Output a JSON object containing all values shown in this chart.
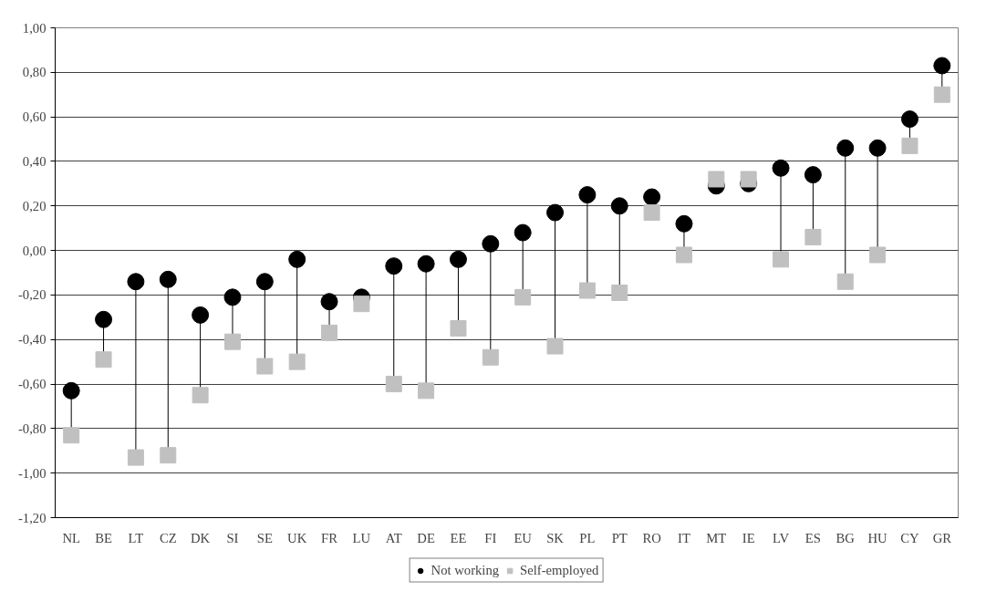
{
  "chart_data": {
    "type": "scatter",
    "categories": [
      "NL",
      "BE",
      "LT",
      "CZ",
      "DK",
      "SI",
      "SE",
      "UK",
      "FR",
      "LU",
      "AT",
      "DE",
      "EE",
      "FI",
      "EU",
      "SK",
      "PL",
      "PT",
      "RO",
      "IT",
      "MT",
      "IE",
      "LV",
      "ES",
      "BG",
      "HU",
      "CY",
      "GR"
    ],
    "series": [
      {
        "name": "Not working",
        "color": "#000000",
        "marker": "circle",
        "values": [
          -0.63,
          -0.31,
          -0.14,
          -0.13,
          -0.29,
          -0.21,
          -0.14,
          -0.04,
          -0.23,
          -0.21,
          -0.07,
          -0.06,
          -0.04,
          0.03,
          0.08,
          0.17,
          0.25,
          0.2,
          0.24,
          0.12,
          0.29,
          0.3,
          0.37,
          0.34,
          0.46,
          0.46,
          0.59,
          0.83
        ]
      },
      {
        "name": "Self-employed",
        "color": "#c0c0c0",
        "marker": "square",
        "values": [
          -0.83,
          -0.49,
          -0.93,
          -0.92,
          -0.65,
          -0.41,
          -0.52,
          -0.5,
          -0.37,
          -0.24,
          -0.6,
          -0.63,
          -0.35,
          -0.48,
          -0.21,
          -0.43,
          -0.18,
          -0.19,
          0.17,
          -0.02,
          0.32,
          0.32,
          -0.04,
          0.06,
          -0.14,
          -0.02,
          0.47,
          0.7
        ]
      }
    ],
    "ylim": [
      -1.2,
      1.0
    ],
    "yticks": [
      {
        "value": -1.2,
        "label": "-1,20"
      },
      {
        "value": -1.0,
        "label": "-1,00"
      },
      {
        "value": -0.8,
        "label": "-0,80"
      },
      {
        "value": -0.6,
        "label": "-0,60"
      },
      {
        "value": -0.4,
        "label": "-0,40"
      },
      {
        "value": -0.2,
        "label": "-0,20"
      },
      {
        "value": 0,
        "label": "0,00"
      },
      {
        "value": 0.2,
        "label": "0,20"
      },
      {
        "value": 0.4,
        "label": "0,40"
      },
      {
        "value": 0.6,
        "label": "0,60"
      },
      {
        "value": 0.8,
        "label": "0,80"
      },
      {
        "value": 1.0,
        "label": "1,00"
      }
    ],
    "grid": "y",
    "legend": "bottom"
  }
}
